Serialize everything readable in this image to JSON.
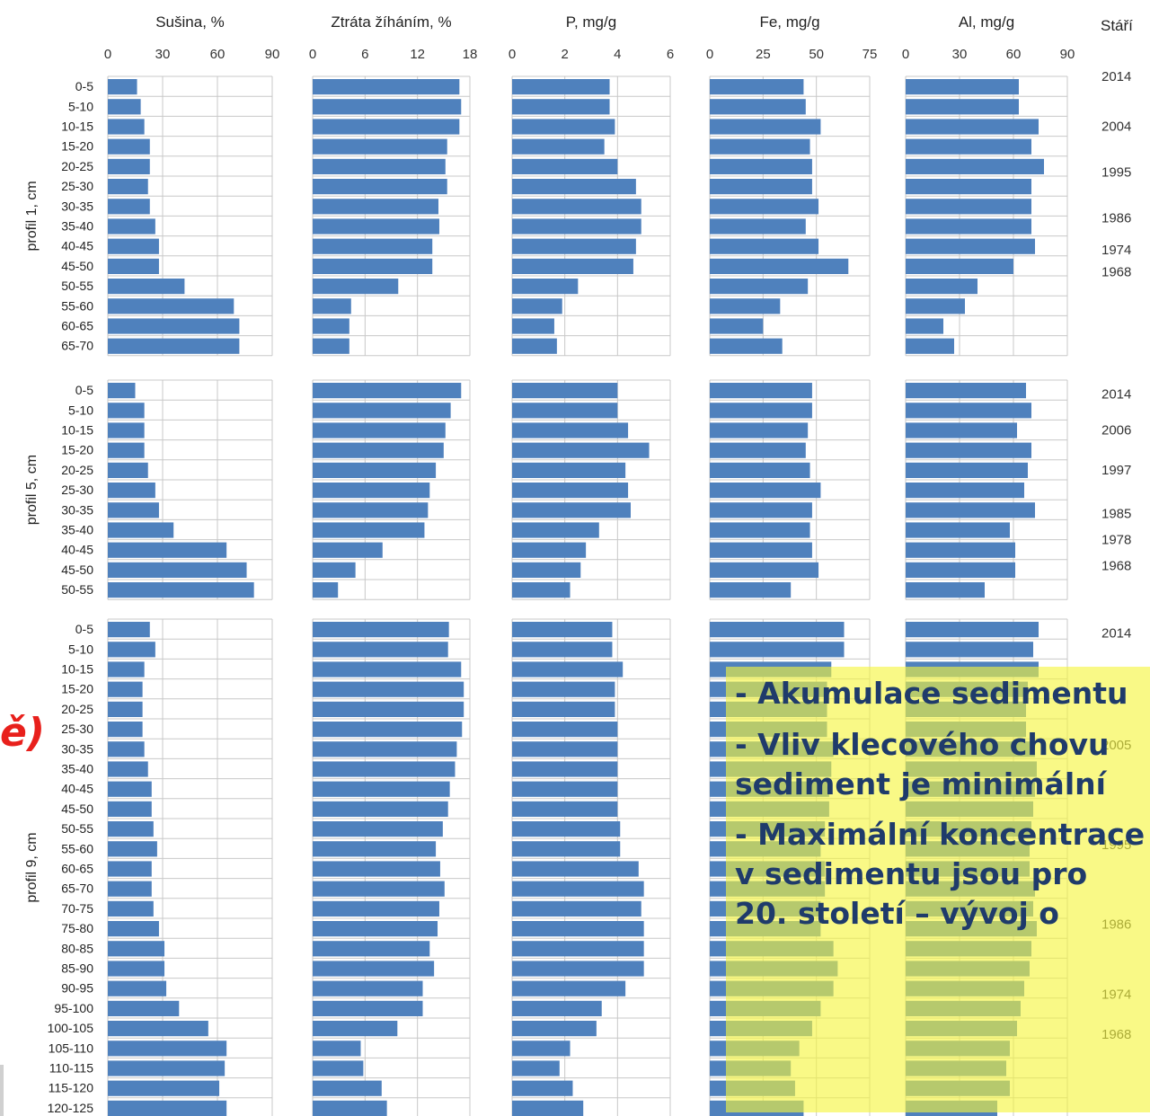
{
  "chart_data": {
    "type": "bar",
    "orientation": "horizontal",
    "bar_color": "#4f81bd",
    "grid": true,
    "panels": [
      {
        "title": "Sušina, %",
        "xlim": [
          0,
          90
        ],
        "ticks": [
          "0",
          "30",
          "60",
          "90"
        ]
      },
      {
        "title": "Ztráta žíháním, %",
        "xlim": [
          0,
          18
        ],
        "ticks": [
          "0",
          "6",
          "12",
          "18"
        ]
      },
      {
        "title": "P, mg/g",
        "xlim": [
          0,
          6
        ],
        "ticks": [
          "0",
          "2",
          "4",
          "6"
        ]
      },
      {
        "title": "Fe, mg/g",
        "xlim": [
          0,
          75
        ],
        "ticks": [
          "0",
          "25",
          "50",
          "75"
        ]
      },
      {
        "title": "Al, mg/g",
        "xlim": [
          0,
          90
        ],
        "ticks": [
          "0",
          "30",
          "60",
          "90"
        ]
      }
    ],
    "age_title": "Stáří",
    "profiles": [
      {
        "label": "profil 1, cm",
        "depths": [
          "0-5",
          "5-10",
          "10-15",
          "15-20",
          "20-25",
          "25-30",
          "30-35",
          "35-40",
          "40-45",
          "45-50",
          "50-55",
          "55-60",
          "60-65",
          "65-70"
        ],
        "values": [
          [
            16,
            18,
            20,
            23,
            23,
            22,
            23,
            26,
            28,
            28,
            42,
            69,
            72,
            72
          ],
          [
            16.8,
            17.0,
            16.8,
            15.4,
            15.2,
            15.4,
            14.4,
            14.5,
            13.7,
            13.7,
            9.8,
            4.4,
            4.2,
            4.2
          ],
          [
            3.7,
            3.7,
            3.9,
            3.5,
            4.0,
            4.7,
            4.9,
            4.9,
            4.7,
            4.6,
            2.5,
            1.9,
            1.6,
            1.7
          ],
          [
            44,
            45,
            52,
            47,
            48,
            48,
            51,
            45,
            51,
            65,
            46,
            33,
            25,
            34
          ],
          [
            63,
            63,
            74,
            70,
            77,
            70,
            70,
            70,
            72,
            60,
            40,
            33,
            21,
            27
          ]
        ],
        "ages": [
          {
            "label": "2014",
            "row": 0
          },
          {
            "label": "2004",
            "row": 2.5
          },
          {
            "label": "1995",
            "row": 4.8
          },
          {
            "label": "1986",
            "row": 7.1
          },
          {
            "label": "1974",
            "row": 8.7
          },
          {
            "label": "1968",
            "row": 9.8
          }
        ]
      },
      {
        "label": "profil 5, cm",
        "depths": [
          "0-5",
          "5-10",
          "10-15",
          "15-20",
          "20-25",
          "25-30",
          "30-35",
          "35-40",
          "40-45",
          "45-50",
          "50-55"
        ],
        "values": [
          [
            15,
            20,
            20,
            20,
            22,
            26,
            28,
            36,
            65,
            76,
            80
          ],
          [
            17.0,
            15.8,
            15.2,
            15.0,
            14.1,
            13.4,
            13.2,
            12.8,
            8.0,
            4.9,
            2.9
          ],
          [
            4.0,
            4.0,
            4.4,
            5.2,
            4.3,
            4.4,
            4.5,
            3.3,
            2.8,
            2.6,
            2.2
          ],
          [
            48,
            48,
            46,
            45,
            47,
            52,
            48,
            47,
            48,
            51,
            38
          ],
          [
            67,
            70,
            62,
            70,
            68,
            66,
            72,
            58,
            61,
            61,
            44
          ]
        ],
        "ages": [
          {
            "label": "2014",
            "row": 0.7
          },
          {
            "label": "2006",
            "row": 2.5
          },
          {
            "label": "1997",
            "row": 4.5
          },
          {
            "label": "1985",
            "row": 6.7
          },
          {
            "label": "1978",
            "row": 8.0
          },
          {
            "label": "1968",
            "row": 9.3
          }
        ]
      },
      {
        "label": "profil 9, cm",
        "depths": [
          "0-5",
          "5-10",
          "10-15",
          "15-20",
          "20-25",
          "25-30",
          "30-35",
          "35-40",
          "40-45",
          "45-50",
          "50-55",
          "55-60",
          "60-65",
          "65-70",
          "70-75",
          "75-80",
          "80-85",
          "85-90",
          "90-95",
          "95-100",
          "100-105",
          "105-110",
          "110-115",
          "115-120",
          "120-125"
        ],
        "values": [
          [
            23,
            26,
            20,
            19,
            19,
            19,
            20,
            22,
            24,
            24,
            25,
            27,
            24,
            24,
            25,
            28,
            31,
            31,
            32,
            39,
            55,
            65,
            64,
            61,
            65
          ],
          [
            15.6,
            15.5,
            17.0,
            17.3,
            17.3,
            17.1,
            16.5,
            16.3,
            15.7,
            15.5,
            14.9,
            14.1,
            14.6,
            15.1,
            14.5,
            14.3,
            13.4,
            13.9,
            12.6,
            12.6,
            9.7,
            5.5,
            5.8,
            7.9,
            8.5
          ],
          [
            3.8,
            3.8,
            4.2,
            3.9,
            3.9,
            4.0,
            4.0,
            4.0,
            4.0,
            4.0,
            4.1,
            4.1,
            4.8,
            5.0,
            4.9,
            5.0,
            5.0,
            5.0,
            4.3,
            3.4,
            3.2,
            2.2,
            1.8,
            2.3,
            2.7
          ],
          [
            63,
            63,
            57,
            55,
            55,
            55,
            58,
            57,
            56,
            56,
            54,
            52,
            54,
            54,
            52,
            52,
            58,
            60,
            58,
            52,
            48,
            42,
            38,
            40,
            44
          ],
          [
            74,
            71,
            74,
            68,
            67,
            67,
            72,
            73,
            72,
            71,
            70,
            69,
            69,
            72,
            71,
            73,
            70,
            69,
            66,
            64,
            62,
            58,
            56,
            58,
            51
          ]
        ],
        "ages": [
          {
            "label": "2014",
            "row": 0.7
          },
          {
            "label": "2005",
            "row": 6.3
          },
          {
            "label": "1995",
            "row": 11.3
          },
          {
            "label": "1986",
            "row": 15.3
          },
          {
            "label": "1974",
            "row": 18.8
          },
          {
            "label": "1968",
            "row": 20.8
          }
        ]
      }
    ]
  },
  "callout": {
    "lines": [
      "- Akumulace sedimentu",
      "- Vliv klecového chovu",
      "  sediment je minimální",
      "- Maximální koncentrace",
      "  v sedimentu jsou pro",
      "  20. století – vývoj o"
    ]
  },
  "left_fragment": "ě)"
}
